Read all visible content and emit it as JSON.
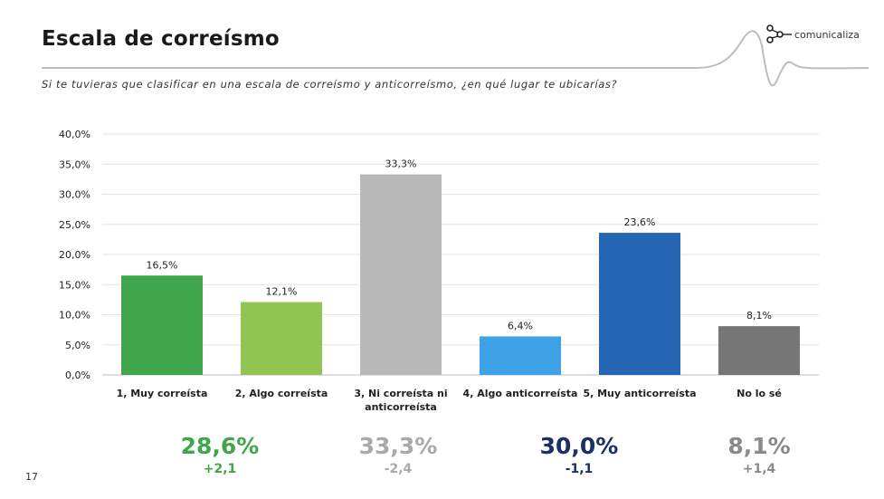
{
  "slide": {
    "title": "Escala de correísmo",
    "subtitle": "Si te tuvieras que clasificar en una escala de correísmo y anticorreísmo, ¿en qué lugar te ubicarías?",
    "brand": "comunicaliza",
    "page_number": "17"
  },
  "chart_data": {
    "type": "bar",
    "title": "",
    "xlabel": "",
    "ylabel": "",
    "ylim": [
      0,
      40
    ],
    "yticks": [
      "0,0%",
      "5,0%",
      "10,0%",
      "15,0%",
      "20,0%",
      "25,0%",
      "30,0%",
      "35,0%",
      "40,0%"
    ],
    "grid": true,
    "categories": [
      [
        "1, Muy correísta"
      ],
      [
        "2, Algo correísta"
      ],
      [
        "3, Ni correísta ni",
        "anticorreísta"
      ],
      [
        "4, Algo anticorreísta"
      ],
      [
        "5, Muy anticorreísta"
      ],
      [
        "No lo sé"
      ]
    ],
    "values": [
      16.5,
      12.1,
      33.3,
      6.4,
      23.6,
      8.1
    ],
    "data_labels": [
      "16,5%",
      "12,1%",
      "33,3%",
      "6,4%",
      "23,6%",
      "8,1%"
    ],
    "colors": [
      "#3fa64b",
      "#92c453",
      "#b9b9b9",
      "#3ea2e6",
      "#2566b3",
      "#767676"
    ]
  },
  "summary": [
    {
      "value": "28,6%",
      "delta": "+2,1",
      "color": "#3fa64b"
    },
    {
      "value": "33,3%",
      "delta": "-2,4",
      "color": "#a9a9a9"
    },
    {
      "value": "30,0%",
      "delta": "-1,1",
      "color": "#1c2f66"
    },
    {
      "value": "8,1%",
      "delta": "+1,4",
      "color": "#8a8a8a"
    }
  ]
}
